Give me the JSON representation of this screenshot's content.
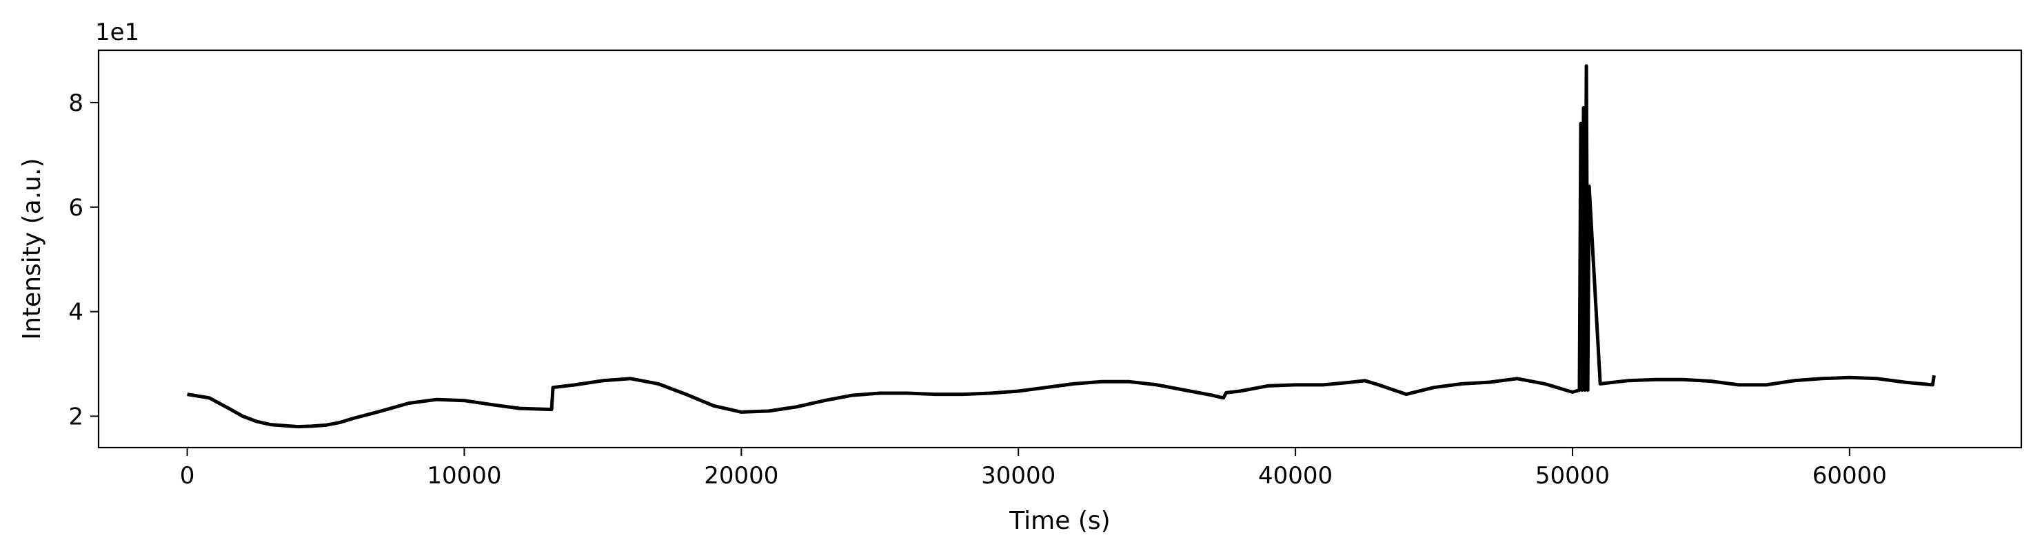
{
  "chart_data": {
    "type": "line",
    "title": "",
    "xlabel": "Time (s)",
    "ylabel": "Intensity (a.u.)",
    "y_offset_label": "1e1",
    "xlim": [
      -3200,
      66200
    ],
    "ylim": [
      1.4,
      9.0
    ],
    "x_ticks": [
      0,
      10000,
      20000,
      30000,
      40000,
      50000,
      60000
    ],
    "x_tick_labels": [
      "0",
      "10000",
      "20000",
      "30000",
      "40000",
      "50000",
      "60000"
    ],
    "y_ticks": [
      2,
      4,
      6,
      8
    ],
    "y_tick_labels": [
      "2",
      "4",
      "6",
      "8"
    ],
    "grid": false,
    "legend": "none",
    "line_color": "#000000",
    "series": [
      {
        "x": [
          0,
          800,
          1500,
          2000,
          2500,
          3000,
          3500,
          4000,
          4500,
          5000,
          5500,
          6000,
          7000,
          8000,
          9000,
          10000,
          11000,
          12000,
          13150,
          13200,
          14000,
          15000,
          16000,
          17000,
          18000,
          19000,
          20000,
          21000,
          22000,
          23000,
          24000,
          25000,
          26000,
          27000,
          28000,
          29000,
          30000,
          31000,
          32000,
          33000,
          34000,
          35000,
          36000,
          37000,
          37400,
          37500,
          38000,
          39000,
          40000,
          41000,
          42000,
          42500,
          43000,
          44000,
          45000,
          46000,
          47000,
          48000,
          49000,
          50000,
          50250,
          50300,
          50350,
          50400,
          50450,
          50500,
          50550,
          50600,
          51000,
          52000,
          53000,
          54000,
          55000,
          56000,
          57000,
          58000,
          59000,
          60000,
          61000,
          62000,
          63000,
          63050
        ],
        "y": [
          2.42,
          2.35,
          2.15,
          2.0,
          1.9,
          1.84,
          1.82,
          1.8,
          1.81,
          1.83,
          1.88,
          1.96,
          2.1,
          2.25,
          2.32,
          2.3,
          2.22,
          2.15,
          2.13,
          2.55,
          2.6,
          2.68,
          2.72,
          2.62,
          2.42,
          2.2,
          2.08,
          2.1,
          2.18,
          2.3,
          2.4,
          2.44,
          2.44,
          2.42,
          2.42,
          2.44,
          2.48,
          2.55,
          2.62,
          2.66,
          2.66,
          2.6,
          2.5,
          2.4,
          2.35,
          2.45,
          2.48,
          2.58,
          2.6,
          2.6,
          2.65,
          2.68,
          2.6,
          2.42,
          2.55,
          2.62,
          2.65,
          2.72,
          2.62,
          2.46,
          2.5,
          7.6,
          2.5,
          7.9,
          2.5,
          8.7,
          2.5,
          6.4,
          2.62,
          2.68,
          2.7,
          2.7,
          2.67,
          2.6,
          2.6,
          2.68,
          2.72,
          2.74,
          2.72,
          2.65,
          2.6,
          2.78
        ]
      }
    ]
  }
}
